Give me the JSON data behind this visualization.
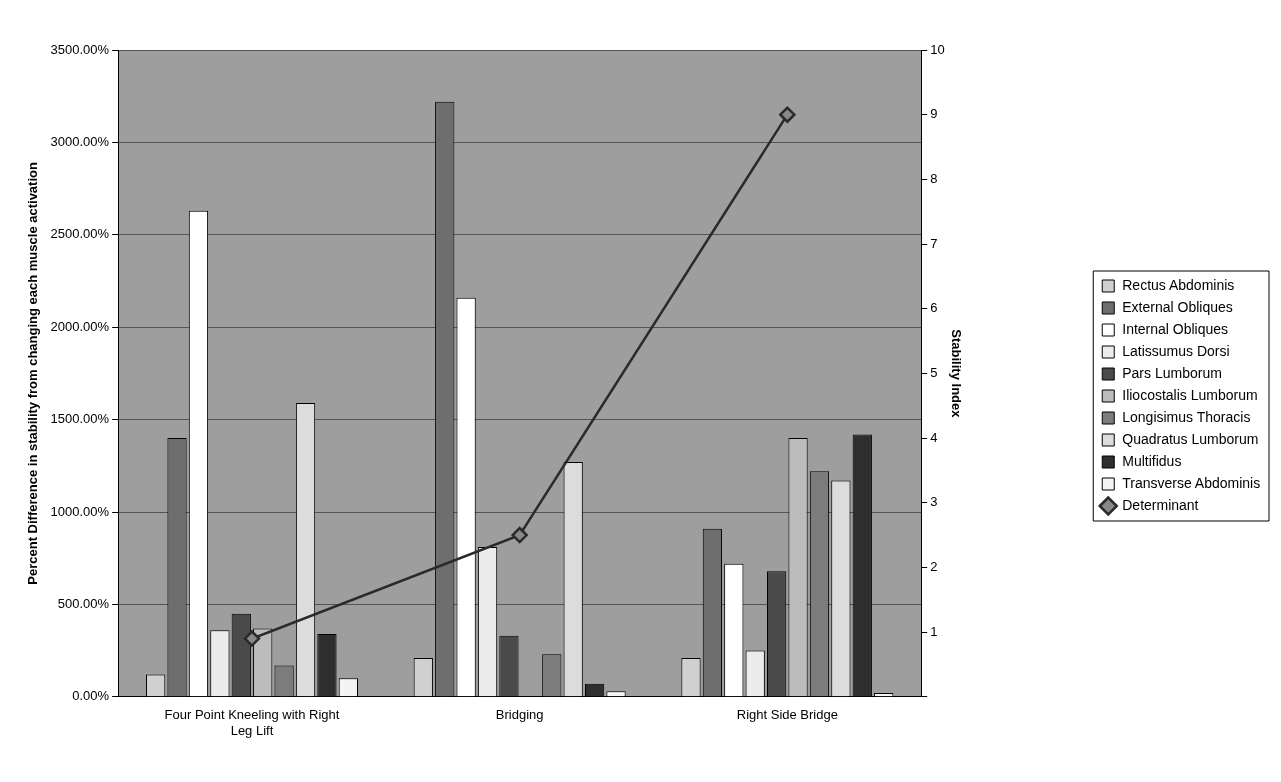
{
  "chart_data": {
    "type": "bar",
    "categories": [
      "Four Point Kneeling with Right Leg Lift",
      "Bridging",
      "Right Side Bridge"
    ],
    "ylabel": "Percent Difference in stability from changing each muscle activation",
    "y2label": "Stability Index",
    "ylim": [
      0,
      3500
    ],
    "yticks": [
      {
        "value": 0,
        "label": "0.00%"
      },
      {
        "value": 500,
        "label": "500.00%"
      },
      {
        "value": 1000,
        "label": "1000.00%"
      },
      {
        "value": 1500,
        "label": "1500.00%"
      },
      {
        "value": 2000,
        "label": "2000.00%"
      },
      {
        "value": 2500,
        "label": "2500.00%"
      },
      {
        "value": 3000,
        "label": "3000.00%"
      },
      {
        "value": 3500,
        "label": "3500.00%"
      }
    ],
    "y2lim": [
      0,
      10
    ],
    "y2ticks": [
      {
        "value": 0,
        "label": null
      },
      1,
      2,
      3,
      4,
      5,
      6,
      7,
      8,
      9,
      10
    ],
    "grid": "y",
    "legend": "right",
    "marker": "diamond",
    "series": [
      {
        "name": "Rectus Abdominis",
        "color": "#d0d0d0",
        "values": [
          120,
          210,
          210
        ]
      },
      {
        "name": "External Obliques",
        "color": "#6e6e6e",
        "values": [
          1400,
          3220,
          910
        ]
      },
      {
        "name": "Internal Obliques",
        "color": "#ffffff",
        "values": [
          2630,
          2160,
          720
        ]
      },
      {
        "name": "Latissumus Dorsi",
        "color": "#ececec",
        "values": [
          360,
          810,
          250
        ]
      },
      {
        "name": "Pars Lumborum",
        "color": "#4a4a4a",
        "values": [
          450,
          330,
          680
        ]
      },
      {
        "name": "Iliocostalis Lumborum",
        "color": "#bcbcbc",
        "values": [
          370,
          0,
          1400
        ]
      },
      {
        "name": "Longisimus Thoracis",
        "color": "#7c7c7c",
        "values": [
          170,
          230,
          1220
        ]
      },
      {
        "name": "Quadratus Lumborum",
        "color": "#dcdcdc",
        "values": [
          1590,
          1270,
          1170
        ]
      },
      {
        "name": "Multifidus",
        "color": "#2e2e2e",
        "values": [
          340,
          70,
          1420
        ]
      },
      {
        "name": "Transverse Abdominis",
        "color": "#f4f4f4",
        "values": [
          100,
          30,
          20
        ]
      },
      {
        "name": "Determinant",
        "type": "line",
        "axis": "y2",
        "color": "#2a2a2a",
        "values": [
          0.9,
          2.5,
          9.0
        ]
      }
    ]
  }
}
